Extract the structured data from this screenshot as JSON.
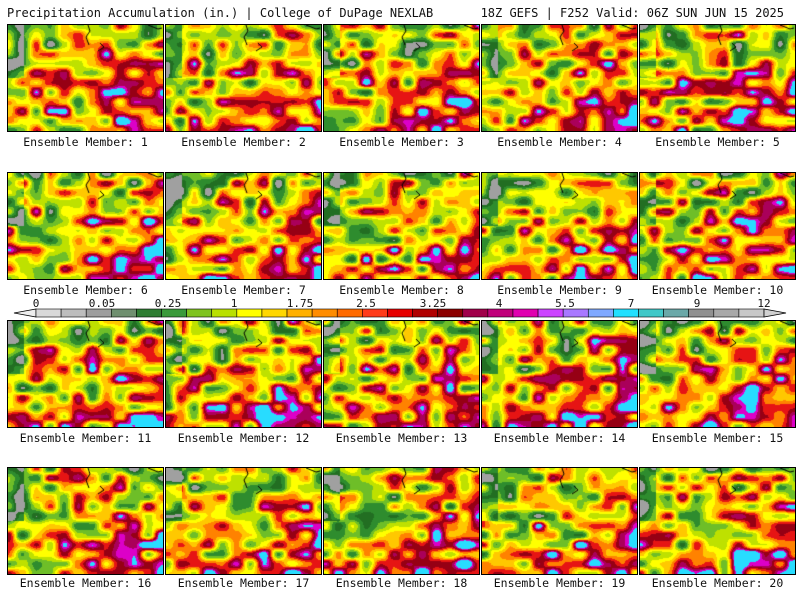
{
  "header": {
    "title_left": "Precipitation Accumulation (in.) | College of DuPage NEXLAB",
    "title_right": "18Z GEFS | F252 Valid: 06Z SUN JUN 15 2025"
  },
  "colorbar": {
    "tick_labels": [
      "0",
      "0.05",
      "0.25",
      "1",
      "1.75",
      "2.5",
      "3.25",
      "4",
      "5.5",
      "7",
      "9",
      "12"
    ],
    "colors": [
      "#d9d9d9",
      "#bdbdbd",
      "#9e9e9e",
      "#6f8f6f",
      "#2e7d32",
      "#3a9a3a",
      "#7fc31f",
      "#b9e000",
      "#ffff00",
      "#ffd700",
      "#ffb000",
      "#ff8c00",
      "#ff6a00",
      "#ff3b1a",
      "#e60000",
      "#b00000",
      "#8b0000",
      "#a0004a",
      "#c0007a",
      "#e000b0",
      "#cc44ff",
      "#a878ff",
      "#7fa8ff",
      "#22e0ff",
      "#40c8c8",
      "#6aa8a8",
      "#909090",
      "#a8a8a8",
      "#c8c8c8"
    ]
  },
  "panels": [
    {
      "label": "Ensemble Member: 1"
    },
    {
      "label": "Ensemble Member: 2"
    },
    {
      "label": "Ensemble Member: 3"
    },
    {
      "label": "Ensemble Member: 4"
    },
    {
      "label": "Ensemble Member: 5"
    },
    {
      "label": "Ensemble Member: 6"
    },
    {
      "label": "Ensemble Member: 7"
    },
    {
      "label": "Ensemble Member: 8"
    },
    {
      "label": "Ensemble Member: 9"
    },
    {
      "label": "Ensemble Member: 10"
    },
    {
      "label": "Ensemble Member: 11"
    },
    {
      "label": "Ensemble Member: 12"
    },
    {
      "label": "Ensemble Member: 13"
    },
    {
      "label": "Ensemble Member: 14"
    },
    {
      "label": "Ensemble Member: 15"
    },
    {
      "label": "Ensemble Member: 16"
    },
    {
      "label": "Ensemble Member: 17"
    },
    {
      "label": "Ensemble Member: 18"
    },
    {
      "label": "Ensemble Member: 19"
    },
    {
      "label": "Ensemble Member: 20"
    }
  ]
}
